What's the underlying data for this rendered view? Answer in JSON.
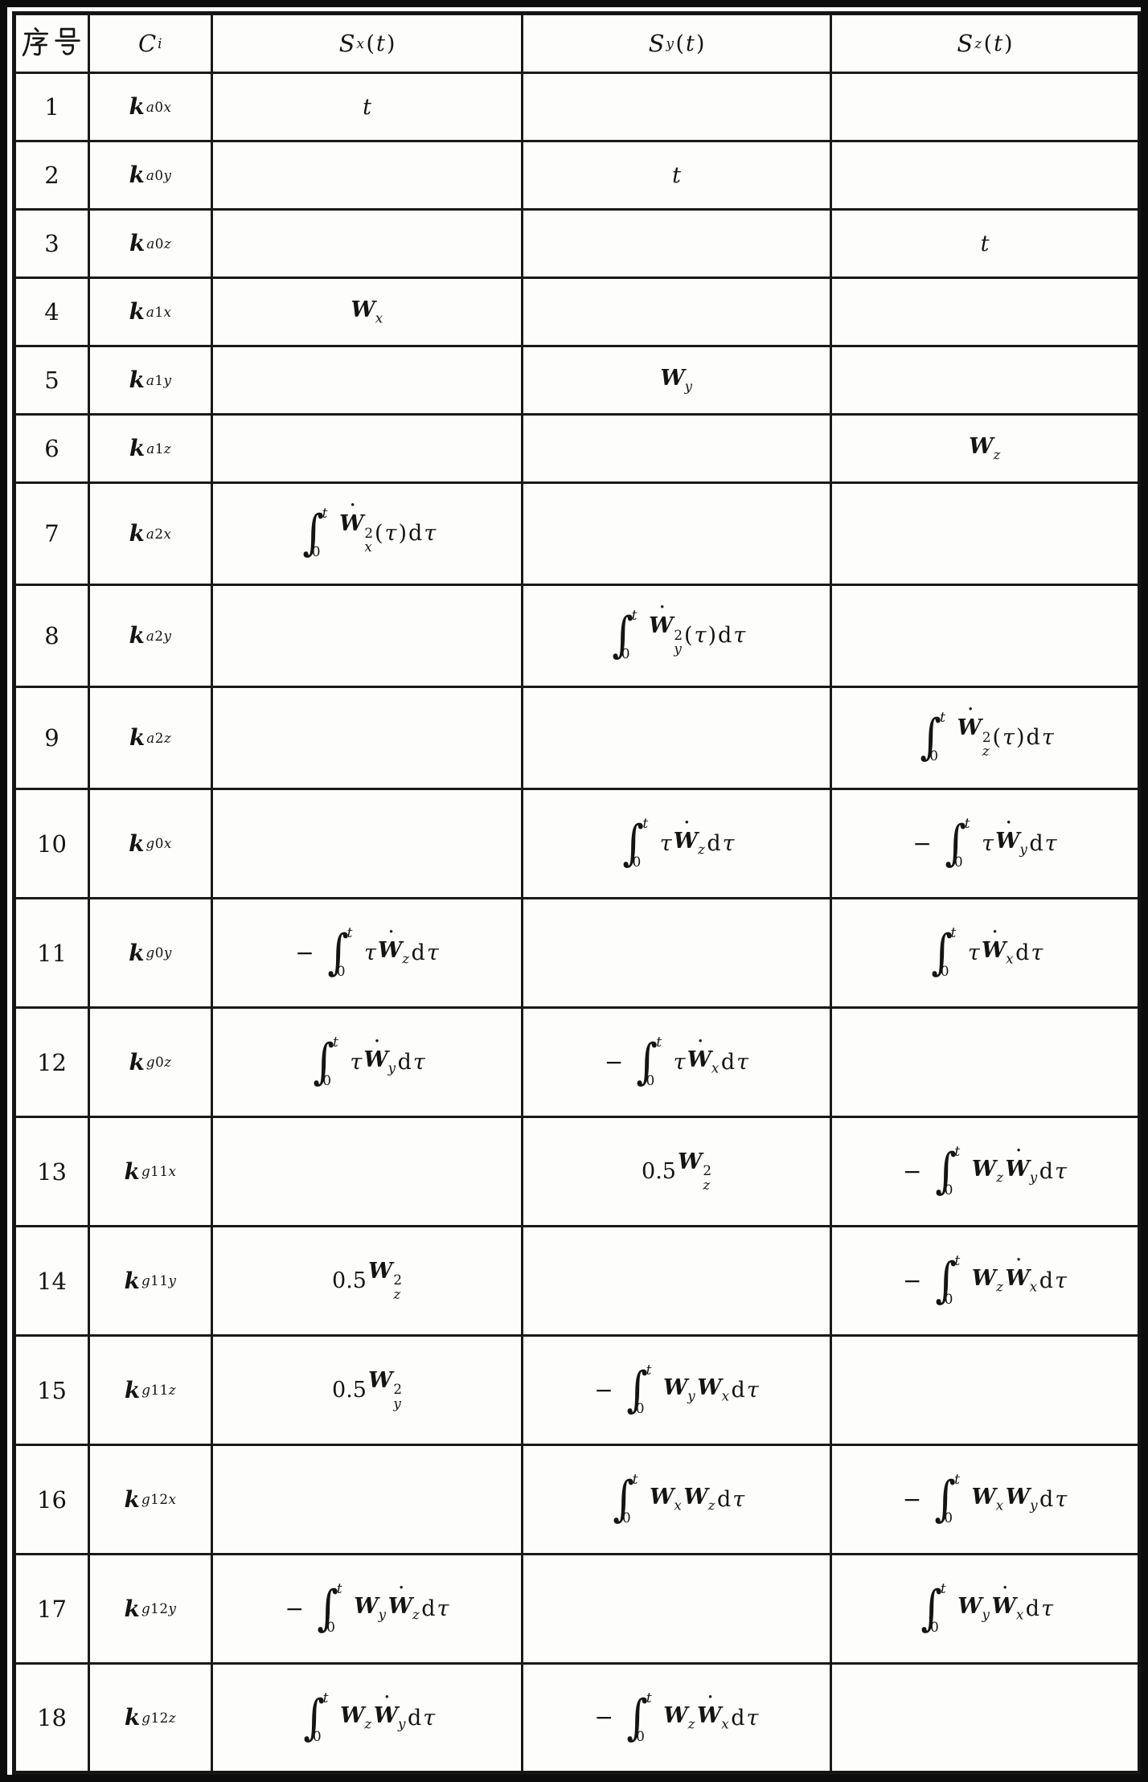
{
  "colors": {
    "ink": "#141414",
    "paper": "#fdfdfb"
  },
  "table": {
    "headers": {
      "index": "序号",
      "ci": {
        "base": "C",
        "sub": "i",
        "arg": ""
      },
      "sx": {
        "base": "S",
        "sub": "x",
        "arg": "t"
      },
      "sy": {
        "base": "S",
        "sub": "y",
        "arg": "t"
      },
      "sz": {
        "base": "S",
        "sub": "z",
        "arg": "t"
      }
    },
    "rows": [
      {
        "no": "1",
        "ci_base": "k",
        "ci_sub": "a0x",
        "sx": "t",
        "sy": "",
        "sz": ""
      },
      {
        "no": "2",
        "ci_base": "k",
        "ci_sub": "a0y",
        "sx": "",
        "sy": "t",
        "sz": ""
      },
      {
        "no": "3",
        "ci_base": "k",
        "ci_sub": "a0z",
        "sx": "",
        "sy": "",
        "sz": "t"
      },
      {
        "no": "4",
        "ci_base": "k",
        "ci_sub": "a1x",
        "sx": "W.x",
        "sy": "",
        "sz": ""
      },
      {
        "no": "5",
        "ci_base": "k",
        "ci_sub": "a1y",
        "sx": "",
        "sy": "W.y",
        "sz": ""
      },
      {
        "no": "6",
        "ci_base": "k",
        "ci_sub": "a1z",
        "sx": "",
        "sy": "",
        "sz": "W.z"
      },
      {
        "no": "7",
        "ci_base": "k",
        "ci_sub": "a2x",
        "sx": "int Wd2.x (tau) dtau",
        "sy": "",
        "sz": ""
      },
      {
        "no": "8",
        "ci_base": "k",
        "ci_sub": "a2y",
        "sx": "",
        "sy": "int Wd2.y (tau) dtau",
        "sz": ""
      },
      {
        "no": "9",
        "ci_base": "k",
        "ci_sub": "a2z",
        "sx": "",
        "sy": "",
        "sz": "int Wd2.z (tau) dtau"
      },
      {
        "no": "10",
        "ci_base": "k",
        "ci_sub": "g0x",
        "sx": "",
        "sy": "int tau Wd.z dtau",
        "sz": "- int tau Wd.y dtau"
      },
      {
        "no": "11",
        "ci_base": "k",
        "ci_sub": "g0y",
        "sx": "- int tau Wd.z dtau",
        "sy": "",
        "sz": "int tau Wd.x dtau"
      },
      {
        "no": "12",
        "ci_base": "k",
        "ci_sub": "g0z",
        "sx": "int tau Wd.y dtau",
        "sy": "- int tau Wd.x dtau",
        "sz": ""
      },
      {
        "no": "13",
        "ci_base": "k",
        "ci_sub": "g11x",
        "sx": "",
        "sy": "0.5 W2.z",
        "sz": "- int W.z Wd.y dtau"
      },
      {
        "no": "14",
        "ci_base": "k",
        "ci_sub": "g11y",
        "sx": "0.5 W2.z",
        "sy": "",
        "sz": "- int W.z Wd.x dtau"
      },
      {
        "no": "15",
        "ci_base": "k",
        "ci_sub": "g11z",
        "sx": "0.5 W2.y",
        "sy": "- int W.y W.x dtau",
        "sz": ""
      },
      {
        "no": "16",
        "ci_base": "k",
        "ci_sub": "g12x",
        "sx": "",
        "sy": "int W.x W.z dtau",
        "sz": "- int W.x W.y dtau"
      },
      {
        "no": "17",
        "ci_base": "k",
        "ci_sub": "g12y",
        "sx": "- int W.y Wd.z dtau",
        "sy": "",
        "sz": "int W.y Wd.x dtau"
      },
      {
        "no": "18",
        "ci_base": "k",
        "ci_sub": "g12z",
        "sx": "int W.z Wd.y dtau",
        "sy": "- int W.z Wd.x dtau",
        "sz": ""
      }
    ]
  }
}
